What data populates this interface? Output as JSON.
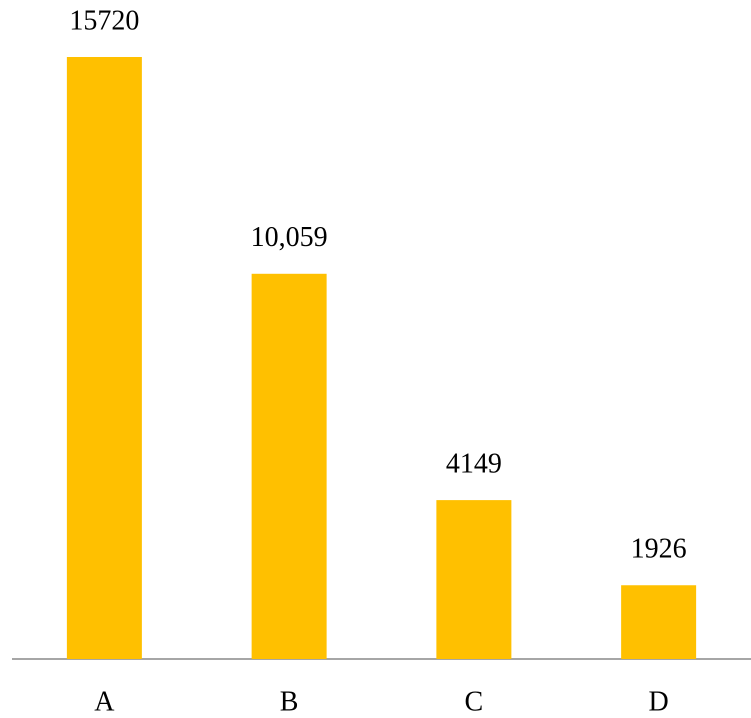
{
  "chart_data": {
    "type": "bar",
    "categories": [
      "A",
      "B",
      "C",
      "D"
    ],
    "values": [
      15720,
      10059,
      4149,
      1926
    ],
    "value_labels": [
      "15720",
      "10,059",
      "4149",
      "1926"
    ],
    "color": "#ffc000"
  }
}
